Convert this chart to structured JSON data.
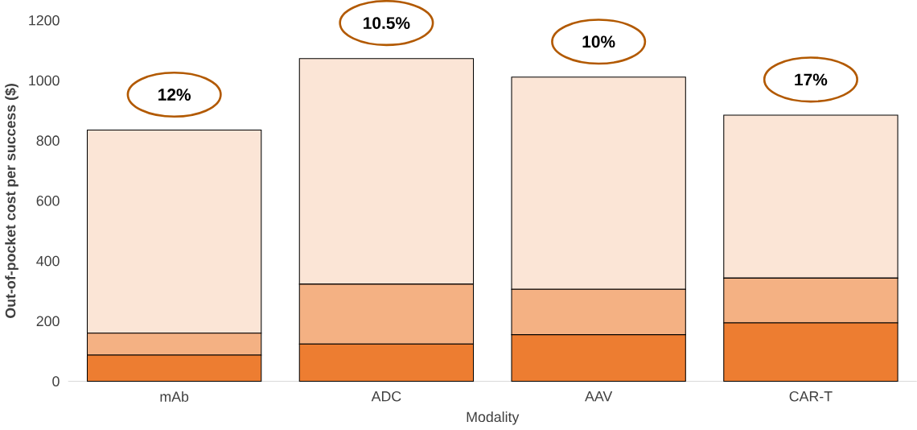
{
  "chart_data": {
    "type": "bar",
    "stacked": true,
    "xlabel": "Modality",
    "ylabel": "Out-of-pocket cost per success ($)",
    "categories": [
      "mAb",
      "ADC",
      "AAV",
      "CAR-T"
    ],
    "series": [
      {
        "color": "#ed7d31",
        "values": [
          87,
          124,
          155,
          194
        ]
      },
      {
        "color": "#f4b183",
        "values": [
          73,
          199,
          151,
          149
        ]
      },
      {
        "color": "#fbe5d6",
        "values": [
          675,
          750,
          705,
          542
        ]
      }
    ],
    "ylim": [
      0,
      1200
    ],
    "yticks": [
      0,
      200,
      400,
      600,
      800,
      1000,
      1200
    ],
    "grid": false,
    "legend": false,
    "annotations": [
      "12%",
      "10.5%",
      "10%",
      "17%"
    ]
  }
}
